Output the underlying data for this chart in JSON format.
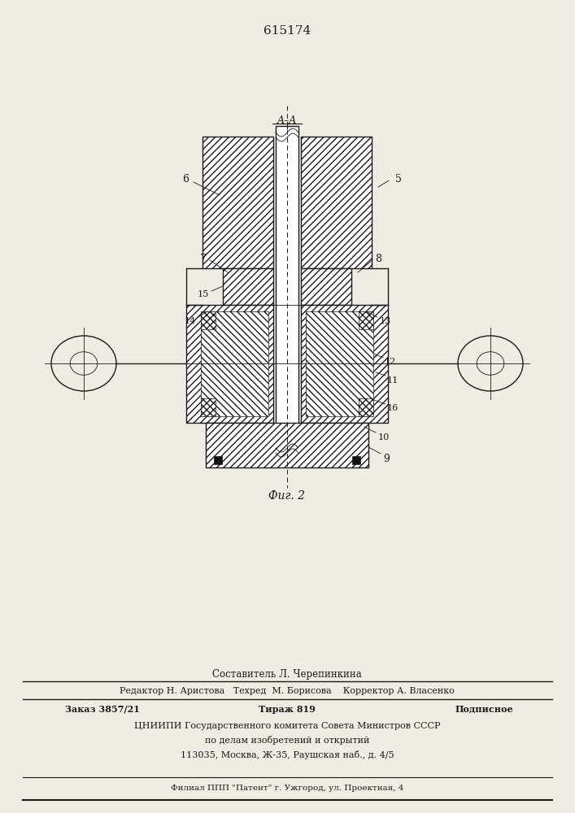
{
  "patent_number": "615174",
  "fig_label": "Фиг. 2",
  "section_label": "A–A",
  "bg_color": "#f0ece4",
  "line_color": "#1a1a1a",
  "footer_lines": [
    "Составитель Л. Черепинкина",
    "Редактор Н. Аристова   Техред  М. Борисова    Корректор А. Власенко",
    "ЦНИИПИ Государственного комитета Совета Министров СССР",
    "по делам изобретений и открытий",
    "113035, Москва, Ж-35, Раушская наб., д. 4/5",
    "Филиал ППП \"Патент\" г. Ужгород, ул. Проектная, 4"
  ]
}
